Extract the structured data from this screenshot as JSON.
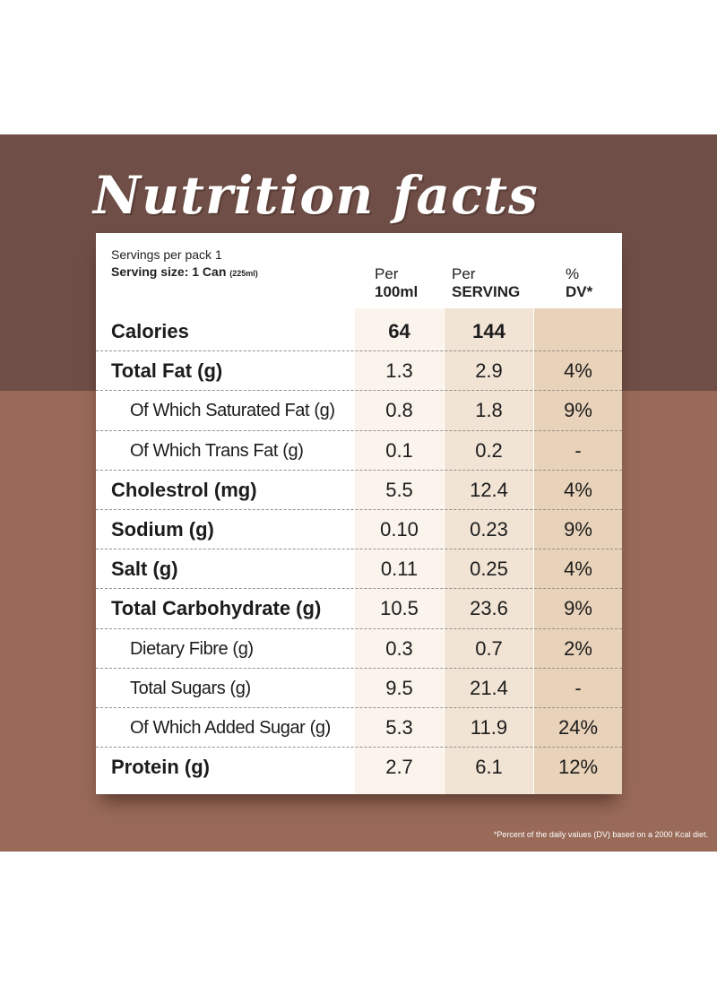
{
  "title": "Nutrition facts",
  "header": {
    "servings": "Servings per pack 1",
    "serving_size_label": "Serving size: 1 Can",
    "serving_size_note": "(225ml)",
    "col1_line1": "Per",
    "col1_line2": "100ml",
    "col2_line1": "Per",
    "col2_line2": "SERVING",
    "col3_line1": "%",
    "col3_line2": "DV*"
  },
  "rows": [
    {
      "label": "Calories",
      "per100": "64",
      "perServing": "144",
      "dv": ""
    },
    {
      "label": "Total Fat (g)",
      "per100": "1.3",
      "perServing": "2.9",
      "dv": "4%"
    },
    {
      "label": "Of Which Saturated Fat (g)",
      "per100": "0.8",
      "perServing": "1.8",
      "dv": "9%"
    },
    {
      "label": "Of Which Trans Fat (g)",
      "per100": "0.1",
      "perServing": "0.2",
      "dv": "-"
    },
    {
      "label": "Cholestrol (mg)",
      "per100": "5.5",
      "perServing": "12.4",
      "dv": "4%"
    },
    {
      "label": "Sodium (g)",
      "per100": "0.10",
      "perServing": "0.23",
      "dv": "9%"
    },
    {
      "label": "Salt (g)",
      "per100": "0.11",
      "perServing": "0.25",
      "dv": "4%"
    },
    {
      "label": "Total Carbohydrate (g)",
      "per100": "10.5",
      "perServing": "23.6",
      "dv": "9%"
    },
    {
      "label": "Dietary Fibre (g)",
      "per100": "0.3",
      "perServing": "0.7",
      "dv": "2%"
    },
    {
      "label": "Total Sugars (g)",
      "per100": "9.5",
      "perServing": "21.4",
      "dv": "-"
    },
    {
      "label": "Of Which Added Sugar (g)",
      "per100": "5.3",
      "perServing": "11.9",
      "dv": "24%"
    },
    {
      "label": "Protein (g)",
      "per100": "2.7",
      "perServing": "6.1",
      "dv": "12%"
    }
  ],
  "footnote": "*Percent of the daily values (DV) based on a 2000 Kcal diet.",
  "colors": {
    "band_top": "#6e4e46",
    "band_bottom": "#996a58",
    "col1_bg": "#faf4ec",
    "col2_bg": "#f1e4d5",
    "col3_bg": "#e8d2b9"
  }
}
